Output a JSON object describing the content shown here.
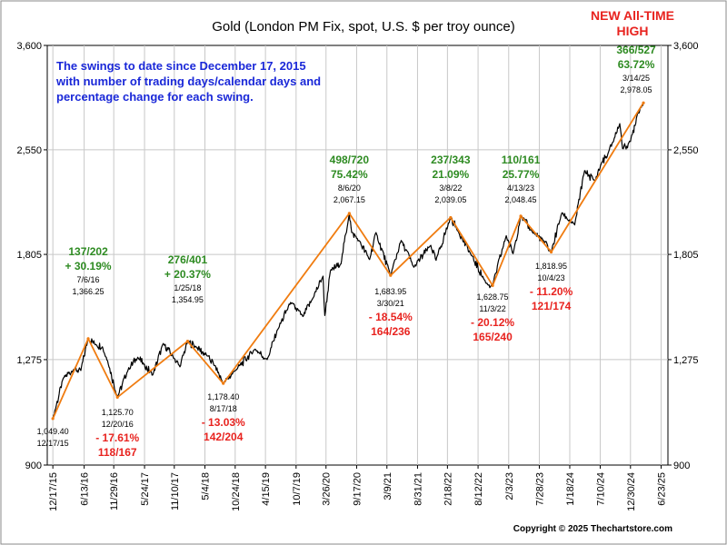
{
  "chart_data": {
    "type": "line",
    "title": "Gold (London PM Fix, spot, U.S. $ per troy ounce)",
    "y_scale": "log",
    "ylim": [
      900,
      3600
    ],
    "xlim": [
      "2015-11-15",
      "2025-08-01"
    ],
    "y_ticks": [
      {
        "value": 900,
        "label": "900"
      },
      {
        "value": 1275,
        "label": "1,275"
      },
      {
        "value": 1805,
        "label": "1,805"
      },
      {
        "value": 2550,
        "label": "2,550"
      },
      {
        "value": 3600,
        "label": "3,600"
      }
    ],
    "x_ticks": [
      {
        "date": "2015-12-17",
        "label": "12/17/15"
      },
      {
        "date": "2016-06-13",
        "label": "6/13/16"
      },
      {
        "date": "2016-11-29",
        "label": "11/29/16"
      },
      {
        "date": "2017-05-24",
        "label": "5/24/17"
      },
      {
        "date": "2017-11-10",
        "label": "11/10/17"
      },
      {
        "date": "2018-05-04",
        "label": "5/4/18"
      },
      {
        "date": "2018-10-24",
        "label": "10/24/18"
      },
      {
        "date": "2019-04-15",
        "label": "4/15/19"
      },
      {
        "date": "2019-10-07",
        "label": "10/7/19"
      },
      {
        "date": "2020-03-26",
        "label": "3/26/20"
      },
      {
        "date": "2020-09-17",
        "label": "9/17/20"
      },
      {
        "date": "2021-03-09",
        "label": "3/9/21"
      },
      {
        "date": "2021-08-31",
        "label": "8/31/21"
      },
      {
        "date": "2022-02-18",
        "label": "2/18/22"
      },
      {
        "date": "2022-08-12",
        "label": "8/12/22"
      },
      {
        "date": "2023-02-03",
        "label": "2/3/23"
      },
      {
        "date": "2023-07-28",
        "label": "7/28/23"
      },
      {
        "date": "2024-01-18",
        "label": "1/18/24"
      },
      {
        "date": "2024-07-10",
        "label": "7/10/24"
      },
      {
        "date": "2024-12-30",
        "label": "12/30/24"
      },
      {
        "date": "2025-06-23",
        "label": "6/23/25"
      }
    ],
    "grid": true,
    "series": [
      {
        "name": "",
        "color": "#000000",
        "points": [
          {
            "x": "2015-12-17",
            "y": 1049.4
          },
          {
            "x": "2016-02-15",
            "y": 1200
          },
          {
            "x": "2016-04-15",
            "y": 1235
          },
          {
            "x": "2016-05-25",
            "y": 1230
          },
          {
            "x": "2016-07-06",
            "y": 1366.25
          },
          {
            "x": "2016-08-20",
            "y": 1340
          },
          {
            "x": "2016-09-25",
            "y": 1330
          },
          {
            "x": "2016-10-25",
            "y": 1270
          },
          {
            "x": "2016-12-20",
            "y": 1125.7
          },
          {
            "x": "2017-02-20",
            "y": 1235
          },
          {
            "x": "2017-04-15",
            "y": 1285
          },
          {
            "x": "2017-05-20",
            "y": 1255
          },
          {
            "x": "2017-07-10",
            "y": 1212
          },
          {
            "x": "2017-09-08",
            "y": 1345
          },
          {
            "x": "2017-11-10",
            "y": 1280
          },
          {
            "x": "2017-12-12",
            "y": 1245
          },
          {
            "x": "2018-01-25",
            "y": 1354.95
          },
          {
            "x": "2018-03-15",
            "y": 1330
          },
          {
            "x": "2018-05-20",
            "y": 1290
          },
          {
            "x": "2018-06-30",
            "y": 1250
          },
          {
            "x": "2018-08-17",
            "y": 1178.4
          },
          {
            "x": "2018-10-25",
            "y": 1230
          },
          {
            "x": "2019-02-15",
            "y": 1320
          },
          {
            "x": "2019-04-25",
            "y": 1275
          },
          {
            "x": "2019-06-25",
            "y": 1410
          },
          {
            "x": "2019-09-05",
            "y": 1540
          },
          {
            "x": "2019-11-15",
            "y": 1470
          },
          {
            "x": "2020-01-10",
            "y": 1560
          },
          {
            "x": "2020-03-09",
            "y": 1680
          },
          {
            "x": "2020-03-19",
            "y": 1475
          },
          {
            "x": "2020-04-20",
            "y": 1710
          },
          {
            "x": "2020-06-20",
            "y": 1750
          },
          {
            "x": "2020-08-06",
            "y": 2067.15
          },
          {
            "x": "2020-08-20",
            "y": 1940
          },
          {
            "x": "2020-09-30",
            "y": 1890
          },
          {
            "x": "2020-11-30",
            "y": 1775
          },
          {
            "x": "2021-01-06",
            "y": 1940
          },
          {
            "x": "2021-03-30",
            "y": 1683.95
          },
          {
            "x": "2021-05-30",
            "y": 1890
          },
          {
            "x": "2021-08-10",
            "y": 1730
          },
          {
            "x": "2021-11-15",
            "y": 1860
          },
          {
            "x": "2021-12-15",
            "y": 1770
          },
          {
            "x": "2022-03-08",
            "y": 2039.05
          },
          {
            "x": "2022-04-20",
            "y": 1950
          },
          {
            "x": "2022-06-30",
            "y": 1810
          },
          {
            "x": "2022-09-28",
            "y": 1640
          },
          {
            "x": "2022-11-03",
            "y": 1628.75
          },
          {
            "x": "2023-01-20",
            "y": 1920
          },
          {
            "x": "2023-02-28",
            "y": 1810
          },
          {
            "x": "2023-04-13",
            "y": 2048.45
          },
          {
            "x": "2023-06-15",
            "y": 1950
          },
          {
            "x": "2023-08-20",
            "y": 1890
          },
          {
            "x": "2023-10-04",
            "y": 1818.95
          },
          {
            "x": "2023-12-04",
            "y": 2070
          },
          {
            "x": "2024-02-15",
            "y": 1990
          },
          {
            "x": "2024-04-12",
            "y": 2380
          },
          {
            "x": "2024-06-10",
            "y": 2300
          },
          {
            "x": "2024-07-20",
            "y": 2450
          },
          {
            "x": "2024-08-20",
            "y": 2500
          },
          {
            "x": "2024-10-30",
            "y": 2780
          },
          {
            "x": "2024-11-15",
            "y": 2560
          },
          {
            "x": "2024-12-30",
            "y": 2620
          },
          {
            "x": "2025-02-10",
            "y": 2880
          },
          {
            "x": "2025-03-14",
            "y": 2978.05
          }
        ]
      },
      {
        "name": "",
        "color": "#f07c10",
        "points": [
          {
            "x": "2015-12-17",
            "y": 1049.4
          },
          {
            "x": "2016-07-06",
            "y": 1366.25
          },
          {
            "x": "2016-12-20",
            "y": 1125.7
          },
          {
            "x": "2018-01-25",
            "y": 1354.95
          },
          {
            "x": "2018-08-17",
            "y": 1178.4
          },
          {
            "x": "2020-08-06",
            "y": 2067.15
          },
          {
            "x": "2021-03-30",
            "y": 1683.95
          },
          {
            "x": "2022-03-08",
            "y": 2039.05
          },
          {
            "x": "2022-11-03",
            "y": 1628.75
          },
          {
            "x": "2023-04-13",
            "y": 2048.45
          },
          {
            "x": "2023-10-04",
            "y": 1818.95
          },
          {
            "x": "2025-03-14",
            "y": 2978.05
          }
        ]
      }
    ],
    "annotations": [
      {
        "kind": "peak",
        "date": "2016-07-06",
        "value": 1366.25,
        "date_label": "7/6/16",
        "price_label": "1,366.25",
        "days": "137/202",
        "pct": "+ 30.19%",
        "color": "#2e8b22"
      },
      {
        "kind": "peak",
        "date": "2018-01-25",
        "value": 1354.95,
        "date_label": "1/25/18",
        "price_label": "1,354.95",
        "days": "276/401",
        "pct": "+ 20.37%",
        "color": "#2e8b22"
      },
      {
        "kind": "peak",
        "date": "2020-08-06",
        "value": 2067.15,
        "date_label": "8/6/20",
        "price_label": "2,067.15",
        "days": "498/720",
        "pct": "75.42%",
        "color": "#2e8b22"
      },
      {
        "kind": "peak",
        "date": "2022-03-08",
        "value": 2039.05,
        "date_label": "3/8/22",
        "price_label": "2,039.05",
        "days": "237/343",
        "pct": "21.09%",
        "color": "#2e8b22"
      },
      {
        "kind": "peak",
        "date": "2023-04-13",
        "value": 2048.45,
        "date_label": "4/13/23",
        "price_label": "2,048.45",
        "days": "110/161",
        "pct": "25.77%",
        "color": "#2e8b22"
      },
      {
        "kind": "peak",
        "date": "2025-03-14",
        "value": 2978.05,
        "date_label": "3/14/25",
        "price_label": "2,978.05",
        "days": "366/527",
        "pct": "63.72%",
        "color": "#2e8b22"
      },
      {
        "kind": "trough",
        "date": "2015-12-17",
        "value": 1049.4,
        "date_label": "12/17/15",
        "price_label": "1,049.40",
        "days": "",
        "pct": "",
        "color": "#e8231f"
      },
      {
        "kind": "trough",
        "date": "2016-12-20",
        "value": 1125.7,
        "date_label": "12/20/16",
        "price_label": "1,125.70",
        "days": "118/167",
        "pct": "- 17.61%",
        "color": "#e8231f"
      },
      {
        "kind": "trough",
        "date": "2018-08-17",
        "value": 1178.4,
        "date_label": "8/17/18",
        "price_label": "1,178.40",
        "days": "142/204",
        "pct": "- 13.03%",
        "color": "#e8231f"
      },
      {
        "kind": "trough",
        "date": "2021-03-30",
        "value": 1683.95,
        "date_label": "3/30/21",
        "price_label": "1,683.95",
        "days": "164/236",
        "pct": "- 18.54%",
        "color": "#e8231f"
      },
      {
        "kind": "trough",
        "date": "2022-11-03",
        "value": 1628.75,
        "date_label": "11/3/22",
        "price_label": "1,628.75",
        "days": "165/240",
        "pct": "- 20.12%",
        "color": "#e8231f"
      },
      {
        "kind": "trough",
        "date": "2023-10-04",
        "value": 1818.95,
        "date_label": "10/4/23",
        "price_label": "1,818.95",
        "days": "121/174",
        "pct": "- 11.20%",
        "color": "#e8231f"
      }
    ],
    "notes": {
      "description_lines": [
        "The swings to date since December 17, 2015",
        "with number of trading days/calendar days and",
        "percentage change for each swing."
      ],
      "description_color": "#1a28d8",
      "headline_lines": [
        "NEW All-TIME",
        "HIGH"
      ],
      "headline_color": "#e8231f",
      "copyright": "Copyright © 2025 Thechartstore.com"
    }
  }
}
